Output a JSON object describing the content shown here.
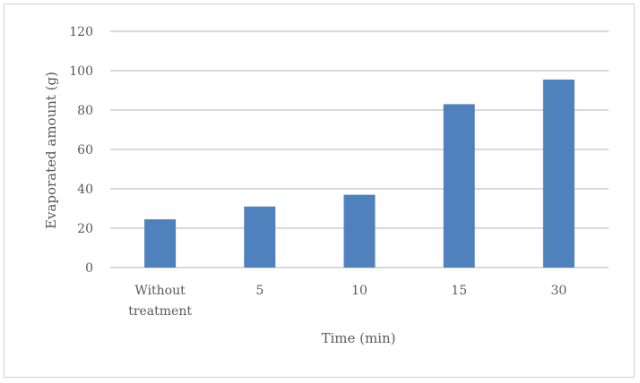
{
  "chart_data": {
    "type": "bar",
    "title": "",
    "xlabel": "Time (min)",
    "ylabel": "Evaporated amount (g)",
    "categories": [
      [
        "Without",
        "treatment"
      ],
      [
        "5"
      ],
      [
        "10"
      ],
      [
        "15"
      ],
      [
        "30"
      ]
    ],
    "values": [
      24.5,
      31,
      37,
      83,
      95.5
    ],
    "ylim": [
      0,
      120
    ],
    "yticks": [
      0,
      20,
      40,
      60,
      80,
      100,
      120
    ],
    "grid": true,
    "legend": "none",
    "bar_color": "#4f81bd",
    "grid_color": "#d9d9d9",
    "text_color": "#595959"
  }
}
